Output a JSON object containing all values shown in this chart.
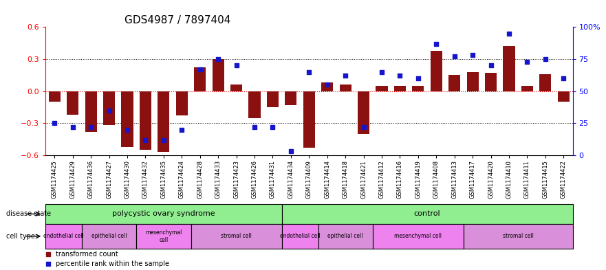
{
  "title": "GDS4987 / 7897404",
  "samples": [
    "GSM1174425",
    "GSM1174429",
    "GSM1174436",
    "GSM1174427",
    "GSM1174430",
    "GSM1174432",
    "GSM1174435",
    "GSM1174424",
    "GSM1174428",
    "GSM1174433",
    "GSM1174423",
    "GSM1174426",
    "GSM1174431",
    "GSM1174434",
    "GSM1174409",
    "GSM1174414",
    "GSM1174418",
    "GSM1174421",
    "GSM1174412",
    "GSM1174416",
    "GSM1174419",
    "GSM1174408",
    "GSM1174413",
    "GSM1174417",
    "GSM1174420",
    "GSM1174410",
    "GSM1174411",
    "GSM1174415",
    "GSM1174422"
  ],
  "transformed_count": [
    -0.1,
    -0.22,
    -0.38,
    -0.32,
    -0.52,
    -0.55,
    -0.57,
    -0.23,
    0.22,
    0.3,
    0.06,
    -0.25,
    -0.15,
    -0.13,
    -0.53,
    0.08,
    0.06,
    -0.4,
    0.05,
    0.05,
    0.05,
    0.38,
    0.15,
    0.18,
    0.17,
    0.42,
    0.05,
    0.16,
    -0.1
  ],
  "percentile_rank": [
    25,
    22,
    22,
    35,
    20,
    12,
    12,
    20,
    67,
    75,
    70,
    22,
    22,
    3,
    65,
    55,
    62,
    22,
    65,
    62,
    60,
    87,
    77,
    78,
    70,
    95,
    73,
    75,
    60
  ],
  "cell_type_groups": [
    {
      "label": "endothelial cell",
      "start": 0,
      "end": 2,
      "color": "#ee82ee"
    },
    {
      "label": "epithelial cell",
      "start": 2,
      "end": 5,
      "color": "#dda0dd"
    },
    {
      "label": "mesenchymal\ncell",
      "start": 5,
      "end": 8,
      "color": "#ee82ee"
    },
    {
      "label": "stromal cell",
      "start": 8,
      "end": 13,
      "color": "#dda0dd"
    },
    {
      "label": "endothelial cell",
      "start": 13,
      "end": 15,
      "color": "#ee82ee"
    },
    {
      "label": "epithelial cell",
      "start": 15,
      "end": 18,
      "color": "#dda0dd"
    },
    {
      "label": "mesenchymal cell",
      "start": 18,
      "end": 23,
      "color": "#ee82ee"
    },
    {
      "label": "stromal cell",
      "start": 23,
      "end": 29,
      "color": "#dda0dd"
    }
  ],
  "bar_color": "#8B1010",
  "dot_color": "#1515CC",
  "ylim_left": [
    -0.6,
    0.6
  ],
  "ylim_right": [
    0,
    100
  ],
  "yticks_left": [
    -0.6,
    -0.3,
    0.0,
    0.3,
    0.6
  ],
  "yticks_right": [
    0,
    25,
    50,
    75,
    100
  ],
  "hlines_dotted": [
    -0.3,
    0.3
  ],
  "hline_red": 0.0,
  "background_color": "#ffffff",
  "title_fontsize": 11,
  "tick_fontsize": 6,
  "label_fontsize": 8
}
